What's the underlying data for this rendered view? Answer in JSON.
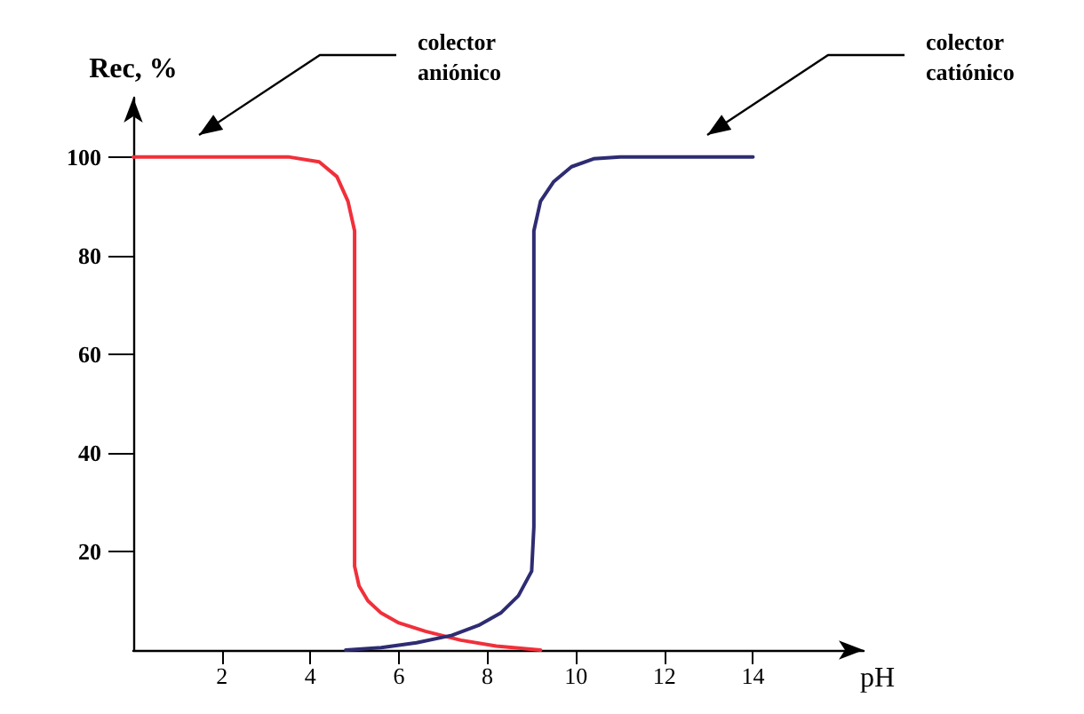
{
  "chart_data": {
    "type": "line",
    "ylabel": "Rec, %",
    "xlabel": "pH",
    "xlim": [
      0,
      16.5
    ],
    "ylim": [
      0,
      112
    ],
    "xticks": [
      2,
      4,
      6,
      8,
      10,
      12,
      14
    ],
    "yticks": [
      20,
      40,
      60,
      80,
      100
    ],
    "grid": false,
    "marker": "none",
    "line_style": "solid",
    "series": [
      {
        "color": "#f0303a",
        "x": [
          0,
          3.5,
          4.2,
          4.6,
          4.85,
          5,
          5,
          5.1,
          5.3,
          5.6,
          6,
          6.6,
          7.4,
          8.2,
          9.2
        ],
        "values": [
          100,
          100,
          99,
          96,
          91,
          85,
          17,
          13,
          10,
          7.5,
          5.5,
          3.8,
          2,
          0.8,
          0
        ]
      },
      {
        "color": "#2e2c72",
        "x": [
          4.8,
          5.6,
          6.4,
          7.2,
          7.8,
          8.3,
          8.7,
          9,
          9.05,
          9.05,
          9.2,
          9.5,
          9.9,
          10.4,
          11,
          14
        ],
        "values": [
          0,
          0.5,
          1.5,
          3,
          5,
          7.5,
          11,
          16,
          25,
          85,
          91,
          95,
          98,
          99.6,
          100,
          100
        ]
      }
    ],
    "annotations": [
      "colector\naniónico",
      "colector\ncatiónico"
    ]
  }
}
